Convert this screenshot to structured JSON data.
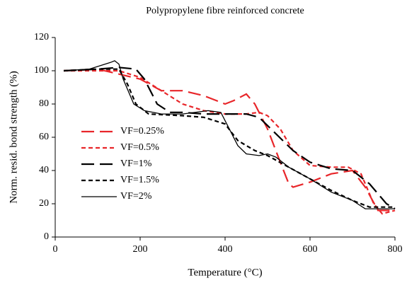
{
  "chart_data": {
    "type": "line",
    "title": "Polypropylene fibre reinforced concrete",
    "x_label": "Temperature (°C)",
    "y_label": "Norm. resid. bond strength (%)",
    "xlim": [
      0,
      800
    ],
    "xticks": [
      0,
      200,
      400,
      600,
      800
    ],
    "ylim": [
      0,
      120
    ],
    "yticks": [
      0,
      20,
      40,
      60,
      80,
      100,
      120
    ],
    "grid": false,
    "legend": "center-left",
    "series": [
      {
        "name": "VF=0.25%",
        "color": "#e8262a",
        "dash": "long",
        "x": [
          20,
          100,
          150,
          200,
          250,
          300,
          350,
          400,
          420,
          450,
          470,
          500,
          530,
          550,
          560,
          600,
          650,
          700,
          730,
          760,
          800
        ],
        "values": [
          100,
          101,
          98,
          95,
          88,
          88,
          85,
          80,
          82,
          86,
          80,
          65,
          45,
          32,
          30,
          33,
          38,
          40,
          30,
          16,
          16
        ]
      },
      {
        "name": "VF=0.5%",
        "color": "#e8262a",
        "dash": "short",
        "x": [
          20,
          100,
          150,
          200,
          250,
          300,
          350,
          400,
          450,
          480,
          500,
          530,
          560,
          600,
          650,
          690,
          720,
          750,
          770,
          800
        ],
        "values": [
          100,
          100,
          100,
          96,
          88,
          80,
          76,
          74,
          74,
          75,
          73,
          65,
          52,
          43,
          42,
          42,
          38,
          20,
          14,
          16
        ]
      },
      {
        "name": "VF=1%",
        "color": "#000000",
        "dash": "long",
        "x": [
          20,
          100,
          150,
          190,
          210,
          240,
          270,
          300,
          350,
          400,
          450,
          480,
          520,
          560,
          600,
          650,
          700,
          740,
          780,
          800
        ],
        "values": [
          100,
          101,
          102,
          101,
          95,
          80,
          75,
          75,
          74,
          74,
          74,
          72,
          62,
          52,
          45,
          41,
          40,
          32,
          20,
          17
        ]
      },
      {
        "name": "VF=1.5%",
        "color": "#000000",
        "dash": "short",
        "x": [
          20,
          100,
          150,
          170,
          190,
          220,
          300,
          350,
          400,
          430,
          470,
          500,
          550,
          600,
          650,
          700,
          740,
          800
        ],
        "values": [
          100,
          101,
          101,
          92,
          80,
          74,
          73,
          72,
          68,
          58,
          52,
          49,
          42,
          35,
          28,
          22,
          18,
          18
        ]
      },
      {
        "name": "VF=2%",
        "color": "#000000",
        "dash": "solid",
        "x": [
          20,
          80,
          130,
          140,
          150,
          160,
          185,
          210,
          250,
          300,
          360,
          390,
          410,
          430,
          450,
          480,
          500,
          520,
          550,
          600,
          650,
          700,
          730,
          760,
          800
        ],
        "values": [
          100,
          101,
          105,
          106,
          104,
          95,
          80,
          76,
          74,
          74,
          76,
          75,
          65,
          55,
          50,
          49,
          50,
          48,
          42,
          35,
          27,
          22,
          17,
          17,
          17
        ]
      }
    ]
  }
}
